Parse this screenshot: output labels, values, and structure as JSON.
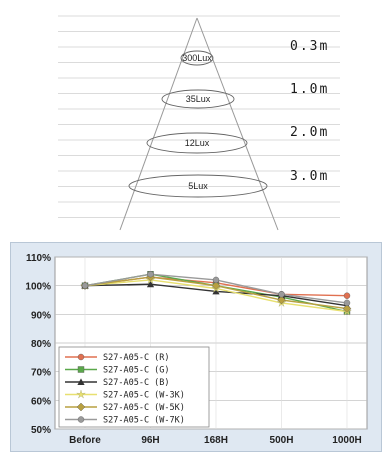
{
  "beam": {
    "levels": [
      {
        "lux": "300Lux",
        "distance": "0.3m"
      },
      {
        "lux": "35Lux",
        "distance": "1.0m"
      },
      {
        "lux": "12Lux",
        "distance": "2.0m"
      },
      {
        "lux": "5Lux",
        "distance": "3.0m"
      }
    ]
  },
  "chart_data": {
    "type": "line",
    "x": [
      "Before",
      "96H",
      "168H",
      "500H",
      "1000H"
    ],
    "yticks": [
      "110%",
      "100%",
      "90%",
      "80%",
      "70%",
      "60%",
      "50%"
    ],
    "ylim": [
      50,
      110
    ],
    "grid": true,
    "legend_position": "bottom-left",
    "series": [
      {
        "name": "S27-A05-C (R)",
        "values": [
          100,
          103,
          101,
          97,
          96.5
        ],
        "color": "#e07050",
        "marker": "circle"
      },
      {
        "name": "S27-A05-C (G)",
        "values": [
          100,
          104,
          100,
          96,
          91
        ],
        "color": "#5aa84a",
        "marker": "square"
      },
      {
        "name": "S27-A05-C (B)",
        "values": [
          100,
          100.5,
          98,
          96.5,
          93
        ],
        "color": "#333333",
        "marker": "triangle"
      },
      {
        "name": "S27-A05-C (W-3K)",
        "values": [
          100,
          102,
          99,
          94,
          91
        ],
        "color": "#e8e070",
        "marker": "star"
      },
      {
        "name": "S27-A05-C (W-5K)",
        "values": [
          100,
          103,
          100,
          95,
          92
        ],
        "color": "#b8a040",
        "marker": "diamond"
      },
      {
        "name": "S27-A05-C (W-7K)",
        "values": [
          100,
          104,
          102,
          97,
          94
        ],
        "color": "#9a9a9a",
        "marker": "circle"
      }
    ]
  }
}
